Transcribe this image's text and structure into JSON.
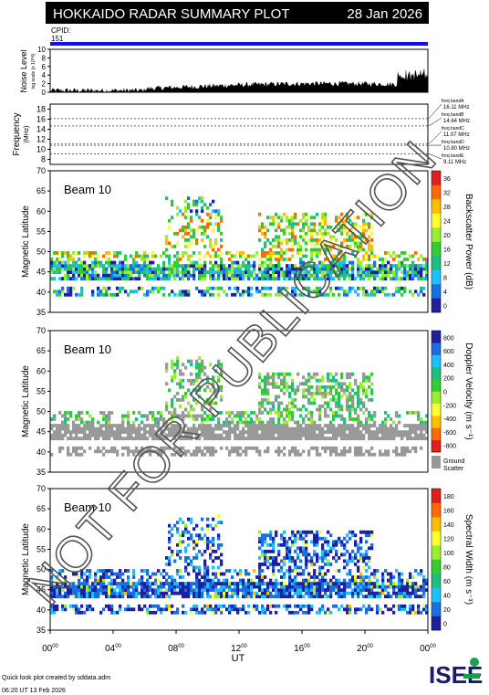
{
  "header": {
    "title": "HOKKAIDO RADAR SUMMARY PLOT",
    "date": "28 Jan 2026"
  },
  "cpid": {
    "label": "CPID:",
    "value": "151"
  },
  "noise_panel": {
    "ylabel": "Noise Level",
    "ylabel_sub": "log scale (x 10^4)",
    "ylim": [
      0,
      10
    ],
    "ticks": [
      "0",
      "2",
      "4",
      "6",
      "8",
      "10"
    ]
  },
  "freq_panel": {
    "ylabel": "Frequency",
    "ylabel_sub": "(MHz)",
    "ticks": [
      "8",
      "10",
      "12",
      "14",
      "16",
      "18"
    ],
    "bands": [
      {
        "name": "freq bandA",
        "value": "16.11 MHz"
      },
      {
        "name": "freq bandB",
        "value": "14.64 MHz"
      },
      {
        "name": "freq bandC",
        "value": "11.07 MHz"
      },
      {
        "name": "freq bandD",
        "value": "10.80 MHz"
      },
      {
        "name": "freq bandE",
        "value": "9.11 MHz"
      }
    ]
  },
  "panels": [
    {
      "beam": "Beam 10",
      "ylabel": "Magnetic Latitude",
      "cbar_label": "Backscatter Power (dB)",
      "cbar_ticks": [
        "0",
        "4",
        "8",
        "12",
        "16",
        "20",
        "24",
        "28",
        "32",
        "36"
      ],
      "colors": [
        "#1f1fa0",
        "#1a6fe0",
        "#1fbfff",
        "#1fbf7f",
        "#33cc33",
        "#99ee33",
        "#ffff33",
        "#ffbf00",
        "#ff6a00",
        "#e01f1f"
      ],
      "ground": ""
    },
    {
      "beam": "Beam 10",
      "ylabel": "Magnetic Latitude",
      "cbar_label": "Doppler Velocity (m s⁻¹)",
      "cbar_ticks": [
        "-800",
        "-600",
        "-400",
        "-200",
        "0",
        "200",
        "400",
        "600",
        "800"
      ],
      "colors": [
        "#e01f1f",
        "#ff6a00",
        "#ffbf00",
        "#ffff33",
        "#99ee33",
        "#33cc33",
        "#1fbf7f",
        "#1fbfff",
        "#1a6fe0",
        "#1f1fa0"
      ],
      "ground": "Ground Scatter"
    },
    {
      "beam": "Beam 10",
      "ylabel": "Magnetic Latitude",
      "cbar_label": "Spectral Width (m s⁻¹)",
      "cbar_ticks": [
        "0",
        "20",
        "40",
        "60",
        "80",
        "100",
        "120",
        "140",
        "160",
        "180"
      ],
      "colors": [
        "#1f1fa0",
        "#1a6fe0",
        "#1fbfff",
        "#1fbf7f",
        "#33cc33",
        "#99ee33",
        "#ffff33",
        "#ffbf00",
        "#ff6a00",
        "#e01f1f"
      ],
      "ground": ""
    }
  ],
  "chart_data": {
    "type": "heatmap",
    "xlabel": "UT",
    "x_ticks": [
      "00",
      "04",
      "08",
      "12",
      "16",
      "20",
      "00"
    ],
    "x_tick_sup": "00",
    "ylim": [
      35,
      70
    ],
    "y_ticks": [
      "35",
      "40",
      "45",
      "50",
      "55",
      "60",
      "65",
      "70"
    ]
  },
  "footer": {
    "credit": "Quick look plot created by sddata.adm",
    "timestamp": "06:20 UT 13 Feb 2026"
  },
  "logo": {
    "text": "ISEE"
  },
  "watermark": "NOT FOR PUBLICATION"
}
